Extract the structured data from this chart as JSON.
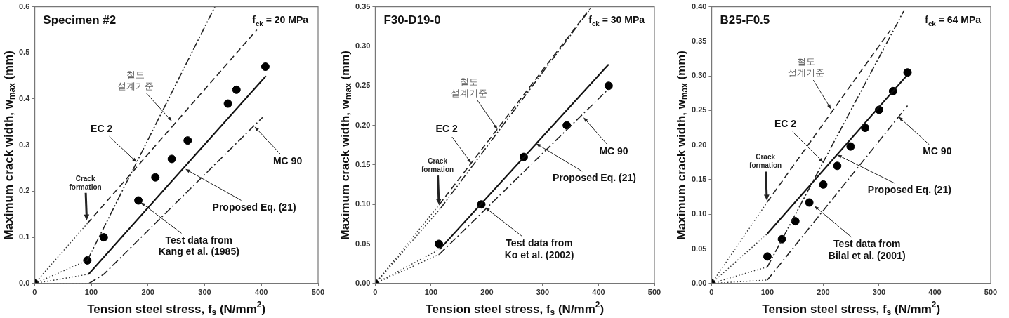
{
  "chart_data": [
    {
      "type": "line",
      "title": "Specimen #2",
      "subtitle": "f$_{ck}$ = 20 MPa",
      "xlabel": "Tension steel stress, f$_{s}$ (N/mm$^{2}$)",
      "ylabel": "Maximum crack width, w$_{max}$ (mm)",
      "xlim": [
        0,
        500
      ],
      "ylim": [
        0,
        0.6
      ],
      "xticks": [
        0,
        100,
        200,
        300,
        400,
        500
      ],
      "yticks": [
        {
          "value": 0,
          "label": "0.0"
        },
        0.1,
        0.2,
        0.3,
        0.4,
        0.5,
        {
          "value": 0.6,
          "label": "0.6"
        }
      ],
      "series": [
        {
          "type": "line",
          "line_style": "dotted",
          "color": "#333333",
          "x": [
            0,
            93
          ],
          "values": [
            0,
            0.13
          ]
        },
        {
          "type": "line",
          "line_style": "dotted",
          "color": "#333333",
          "x": [
            0,
            93
          ],
          "values": [
            0,
            0.05
          ]
        },
        {
          "type": "line",
          "line_style": "dotted",
          "color": "#333333",
          "x": [
            0,
            95
          ],
          "values": [
            0,
            0.02
          ]
        },
        {
          "type": "line",
          "line_style": "dotted",
          "color": "#333333",
          "x": [
            0,
            96
          ],
          "values": [
            0,
            0
          ]
        },
        {
          "type": "line",
          "line_style": "dashed",
          "color": "#222222",
          "x": [
            93,
            392
          ],
          "values": [
            0.13,
            0.55
          ]
        },
        {
          "type": "line",
          "line_style": "dashdotdot",
          "color": "#222222",
          "x": [
            93,
            318
          ],
          "values": [
            0.05,
            0.6
          ]
        },
        {
          "type": "line",
          "line_style": "solid",
          "color": "#111111",
          "x": [
            95,
            408
          ],
          "values": [
            0.02,
            0.45
          ]
        },
        {
          "type": "line",
          "line_style": "dashdot",
          "color": "#222222",
          "x": [
            96,
            122,
            402
          ],
          "values": [
            0,
            0.02,
            0.36
          ]
        },
        {
          "type": "scatter",
          "marker": "circle",
          "color": "#000000",
          "x": [
            0,
            93,
            122,
            183,
            213,
            242,
            270,
            341,
            356,
            407
          ],
          "values": [
            0,
            0.05,
            0.1,
            0.18,
            0.23,
            0.27,
            0.31,
            0.39,
            0.42,
            0.47
          ]
        }
      ],
      "annotations": [
        {
          "text": "철도 설계기준",
          "x": 242,
          "y": 0.352
        },
        {
          "text": "EC 2",
          "x": 180,
          "y": 0.263
        },
        {
          "text": "Crack formation",
          "x": 92,
          "y": 0.137
        },
        {
          "text": "Proposed Eq. (21)",
          "x": 266,
          "y": 0.248
        },
        {
          "text": "MC 90",
          "x": 388,
          "y": 0.34
        },
        {
          "text": "Test data from Kang et al. (1985)",
          "x": 187,
          "y": 0.176
        }
      ]
    },
    {
      "type": "line",
      "title": "F30-D19-0",
      "subtitle": "f$_{ck}$ = 30 MPa",
      "xlabel": "Tension steel stress, f$_{s}$ (N/mm$^{2}$)",
      "ylabel": "Maximum crack width, w$_{max}$ (mm)",
      "xlim": [
        0,
        500
      ],
      "ylim": [
        0,
        0.35
      ],
      "xticks": [
        0,
        100,
        200,
        300,
        400,
        500
      ],
      "yticks": [
        {
          "value": 0,
          "label": "0.00"
        },
        0.05,
        {
          "value": 0.1,
          "label": "0.10"
        },
        0.15,
        {
          "value": 0.2,
          "label": "0.20"
        },
        0.25,
        {
          "value": 0.3,
          "label": "0.30"
        },
        0.35
      ],
      "series": [
        {
          "type": "line",
          "line_style": "dotted",
          "color": "#333333",
          "x": [
            0,
            115
          ],
          "values": [
            0,
            0.1
          ]
        },
        {
          "type": "line",
          "line_style": "dotted",
          "color": "#333333",
          "x": [
            0,
            117
          ],
          "values": [
            0,
            0.095
          ]
        },
        {
          "type": "line",
          "line_style": "dotted",
          "color": "#333333",
          "x": [
            0,
            115
          ],
          "values": [
            0,
            0.043
          ]
        },
        {
          "type": "line",
          "line_style": "dotted",
          "color": "#333333",
          "x": [
            0,
            115
          ],
          "values": [
            0,
            0.037
          ]
        },
        {
          "type": "line",
          "line_style": "dashed",
          "color": "#222222",
          "x": [
            115,
            384
          ],
          "values": [
            0.1,
            0.347
          ]
        },
        {
          "type": "line",
          "line_style": "dashdotdot",
          "color": "#222222",
          "x": [
            117,
            387
          ],
          "values": [
            0.095,
            0.349
          ]
        },
        {
          "type": "line",
          "line_style": "solid",
          "color": "#111111",
          "x": [
            115,
            418
          ],
          "values": [
            0.043,
            0.277
          ]
        },
        {
          "type": "line",
          "line_style": "dashdot",
          "color": "#222222",
          "x": [
            115,
            415
          ],
          "values": [
            0.037,
            0.244
          ]
        },
        {
          "type": "scatter",
          "marker": "circle",
          "color": "#000000",
          "x": [
            0,
            114,
            190,
            266,
            343,
            418
          ],
          "values": [
            0,
            0.05,
            0.1,
            0.16,
            0.2,
            0.25
          ]
        }
      ],
      "annotations": [
        {
          "text": "철도 설계기준",
          "x": 219,
          "y": 0.195
        },
        {
          "text": "EC 2",
          "x": 172,
          "y": 0.152
        },
        {
          "text": "Crack formation",
          "x": 114,
          "y": 0.1
        },
        {
          "text": "Proposed Eq. (21)",
          "x": 288,
          "y": 0.177
        },
        {
          "text": "MC 90",
          "x": 373,
          "y": 0.21
        },
        {
          "text": "Test data from Ko et al. (2002)",
          "x": 197,
          "y": 0.096
        }
      ]
    },
    {
      "type": "line",
      "title": "B25-F0.5",
      "subtitle": "f$_{ck}$ = 64 MPa",
      "xlabel": "Tension steel stress, f$_{s}$ (N/mm$^{2}$)",
      "ylabel": "Maximum crack width, w$_{max}$ (mm)",
      "xlim": [
        0,
        500
      ],
      "ylim": [
        0,
        0.4
      ],
      "xticks": [
        0,
        100,
        200,
        300,
        400,
        500
      ],
      "yticks": [
        {
          "value": 0,
          "label": "0.00"
        },
        0.05,
        {
          "value": 0.1,
          "label": "0.10"
        },
        0.15,
        {
          "value": 0.2,
          "label": "0.20"
        },
        0.25,
        {
          "value": 0.3,
          "label": "0.30"
        },
        0.35,
        {
          "value": 0.4,
          "label": "0.40"
        }
      ],
      "series": [
        {
          "type": "line",
          "line_style": "dotted",
          "color": "#333333",
          "x": [
            0,
            100
          ],
          "values": [
            0,
            0.118
          ]
        },
        {
          "type": "line",
          "line_style": "dotted",
          "color": "#333333",
          "x": [
            0,
            100
          ],
          "values": [
            0,
            0.072
          ]
        },
        {
          "type": "line",
          "line_style": "dotted",
          "color": "#333333",
          "x": [
            0,
            100
          ],
          "values": [
            0,
            0.024
          ]
        },
        {
          "type": "line",
          "line_style": "dotted",
          "color": "#333333",
          "x": [
            0,
            100
          ],
          "values": [
            0,
            0.005
          ]
        },
        {
          "type": "line",
          "line_style": "dashed",
          "color": "#222222",
          "x": [
            100,
            320
          ],
          "values": [
            0.118,
            0.366
          ]
        },
        {
          "type": "line",
          "line_style": "dashdotdot",
          "color": "#222222",
          "x": [
            100,
            345
          ],
          "values": [
            0.024,
            0.395
          ]
        },
        {
          "type": "line",
          "line_style": "solid",
          "color": "#111111",
          "x": [
            100,
            349
          ],
          "values": [
            0.072,
            0.3
          ]
        },
        {
          "type": "line",
          "line_style": "dashdot",
          "color": "#222222",
          "x": [
            100,
            351
          ],
          "values": [
            0.005,
            0.257
          ]
        },
        {
          "type": "scatter",
          "marker": "circle",
          "color": "#000000",
          "x": [
            0,
            100,
            126,
            150,
            175,
            200,
            225,
            249,
            275,
            300,
            325,
            351
          ],
          "values": [
            0,
            0.039,
            0.064,
            0.09,
            0.117,
            0.143,
            0.17,
            0.198,
            0.225,
            0.251,
            0.278,
            0.305
          ]
        }
      ],
      "annotations": [
        {
          "text": "철도 설계기준",
          "x": 214,
          "y": 0.252
        },
        {
          "text": "EC 2",
          "x": 200,
          "y": 0.175
        },
        {
          "text": "Crack formation",
          "x": 99,
          "y": 0.12
        },
        {
          "text": "Proposed Eq. (21)",
          "x": 225,
          "y": 0.186
        },
        {
          "text": "MC 90",
          "x": 335,
          "y": 0.241
        },
        {
          "text": "Test data from Bilal et al. (2001)",
          "x": 184,
          "y": 0.112
        }
      ]
    }
  ]
}
